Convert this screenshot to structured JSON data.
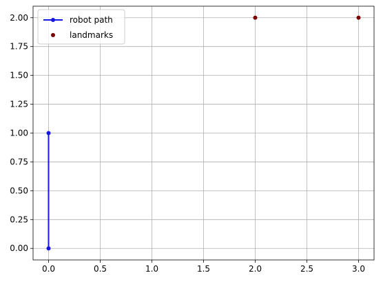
{
  "chart_data": {
    "type": "line",
    "xlim": [
      -0.15,
      3.15
    ],
    "ylim": [
      -0.1,
      2.1
    ],
    "xticks": [
      0.0,
      0.5,
      1.0,
      1.5,
      2.0,
      2.5,
      3.0
    ],
    "yticks": [
      0.0,
      0.25,
      0.5,
      0.75,
      1.0,
      1.25,
      1.5,
      1.75,
      2.0
    ],
    "xtick_labels": [
      "0.0",
      "0.5",
      "1.0",
      "1.5",
      "2.0",
      "2.5",
      "3.0"
    ],
    "ytick_labels": [
      "0.00",
      "0.25",
      "0.50",
      "0.75",
      "1.00",
      "1.25",
      "1.50",
      "1.75",
      "2.00"
    ],
    "grid": true,
    "legend_position": "top-left",
    "series": [
      {
        "name": "robot path",
        "kind": "line",
        "color": "#1515e6",
        "marker": "circle",
        "x": [
          0,
          0
        ],
        "y": [
          0,
          1
        ]
      },
      {
        "name": "landmarks",
        "kind": "scatter",
        "color": "#7a0000",
        "marker": "circle",
        "x": [
          2,
          3
        ],
        "y": [
          2,
          2
        ]
      }
    ]
  }
}
